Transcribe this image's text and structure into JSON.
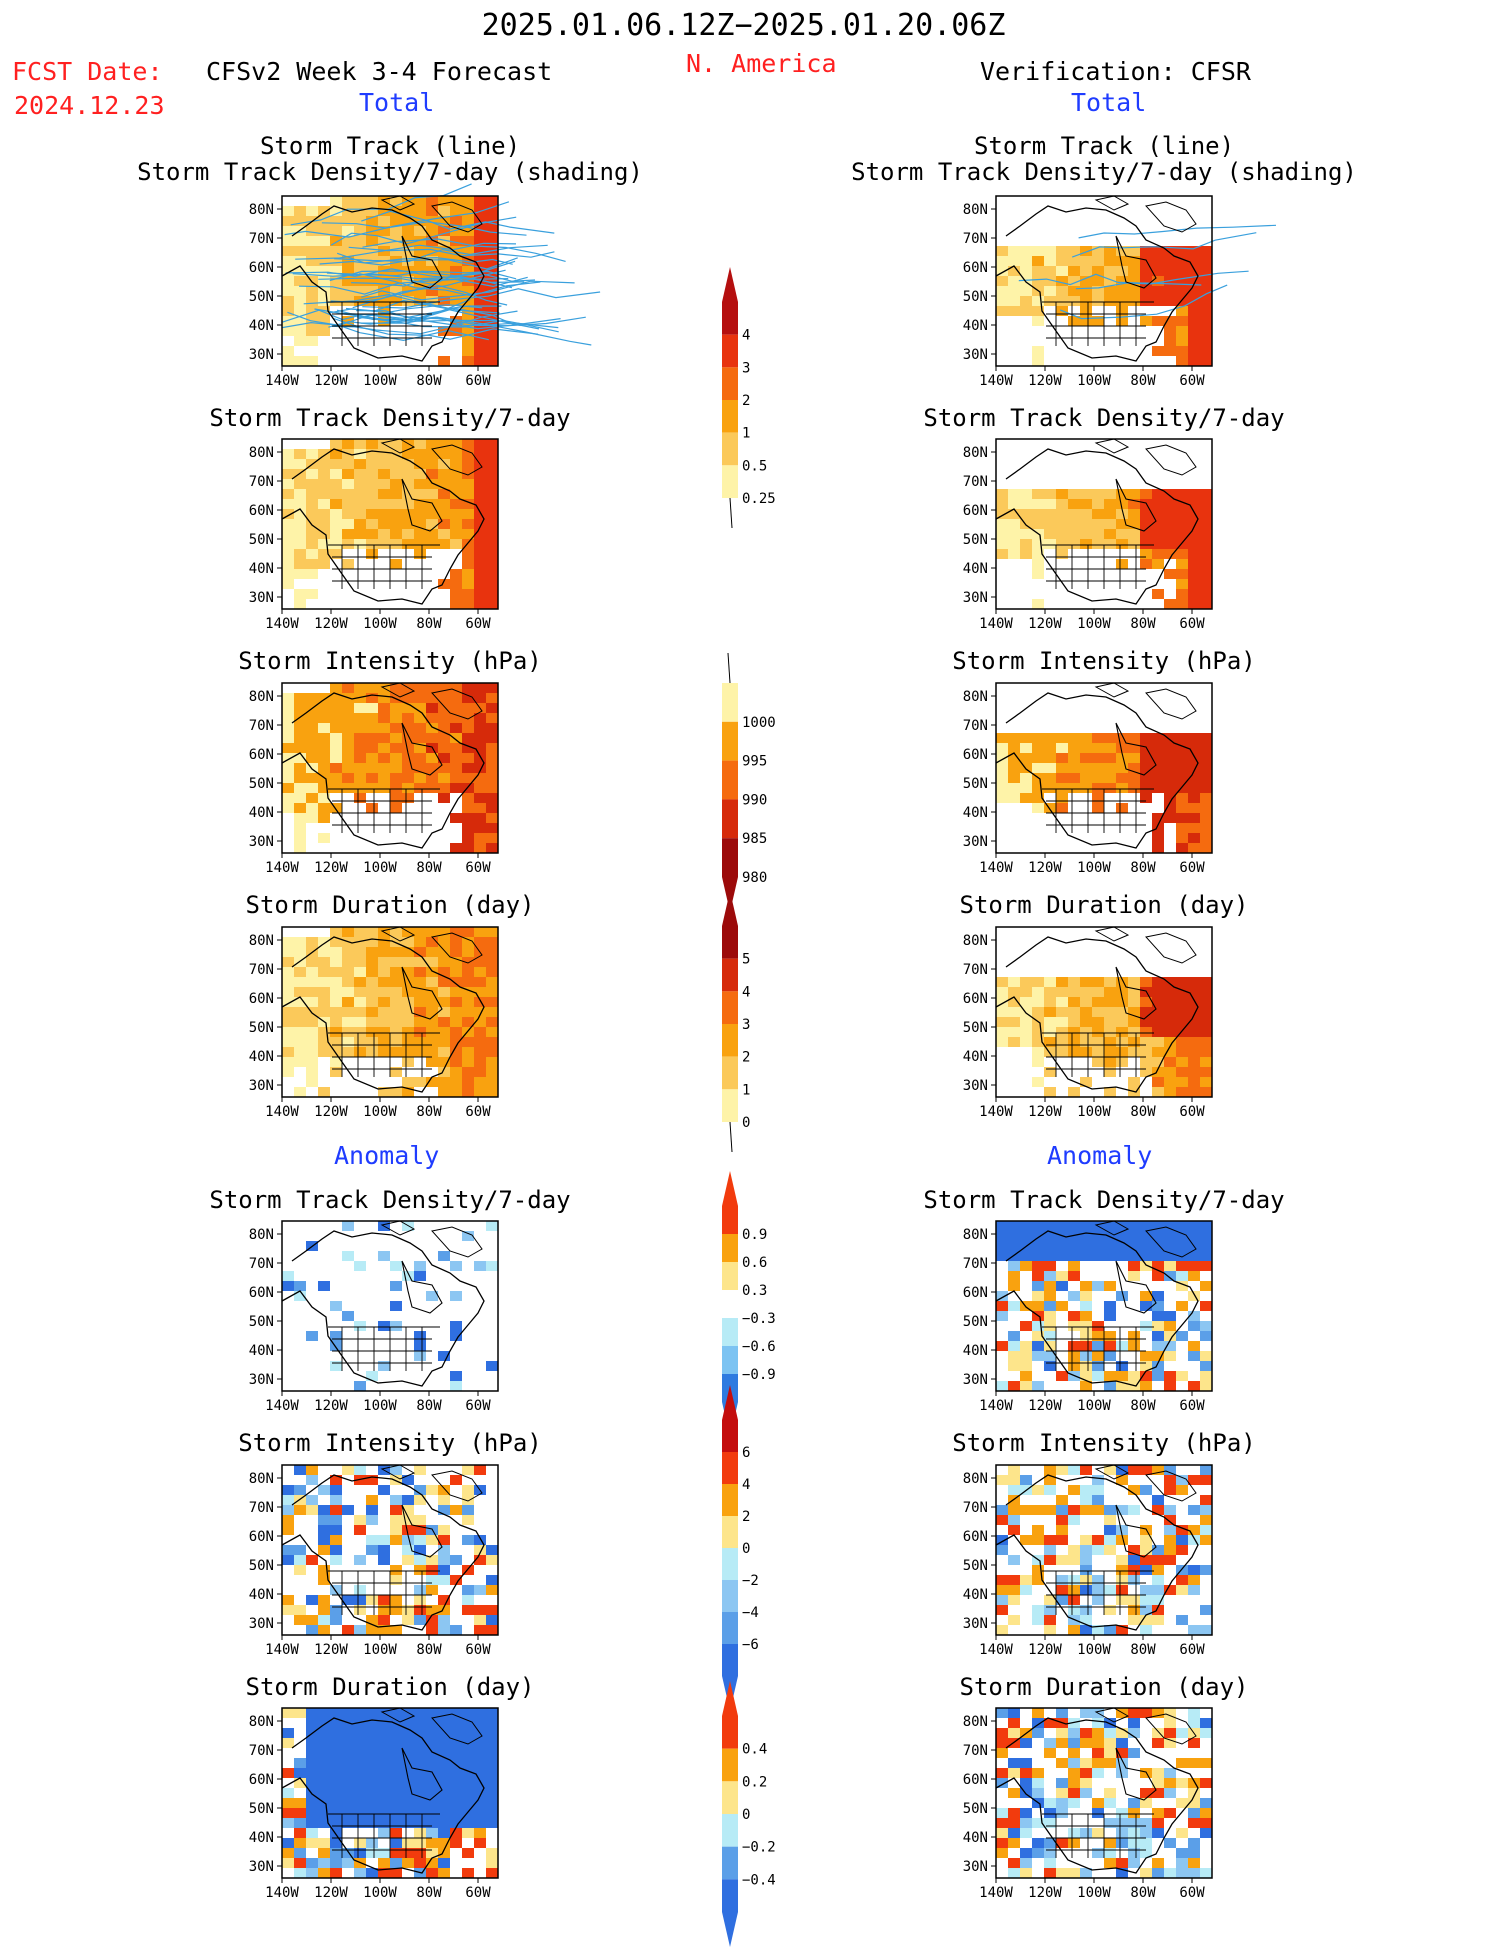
{
  "header": {
    "period": "2025.01.06.12Z−2025.01.20.06Z",
    "region": "N. America",
    "fcst_label": "FCST Date:",
    "fcst_date": "2024.12.23",
    "left_title": "CFSv2 Week 3-4 Forecast",
    "right_title": "Verification: CFSR",
    "total_label": "Total",
    "anomaly_label": "Anomaly"
  },
  "panel_titles": {
    "track_line": "Storm Track (line)",
    "track_shading": "Storm Track Density/7-day (shading)",
    "density": "Storm Track Density/7-day",
    "intensity": "Storm Intensity (hPa)",
    "duration": "Storm Duration (day)"
  },
  "axes": {
    "lat_labels": [
      "80N",
      "70N",
      "60N",
      "50N",
      "40N",
      "30N"
    ],
    "lon_labels": [
      "140W",
      "120W",
      "100W",
      "80W",
      "60W"
    ]
  },
  "colorbars": {
    "density": {
      "labels": [
        "4",
        "3",
        "2",
        "1",
        "0.5",
        "0.25"
      ],
      "colors": [
        "#b50f0f",
        "#e8330e",
        "#f56b0f",
        "#f9a20f",
        "#fbc95a",
        "#fef3a8"
      ]
    },
    "intensity": {
      "labels": [
        "1000",
        "995",
        "990",
        "985",
        "980"
      ],
      "colors": [
        "#fef3a8",
        "#f9a20f",
        "#f56b0f",
        "#d62a0a",
        "#9c0a0a"
      ]
    },
    "duration": {
      "labels": [
        "5",
        "4",
        "3",
        "2",
        "1",
        "0"
      ],
      "colors": [
        "#9c0a0a",
        "#d62a0a",
        "#f56b0f",
        "#f9a20f",
        "#fbc95a",
        "#fef3a8"
      ]
    },
    "anom_density": {
      "labels": [
        "0.9",
        "0.6",
        "0.3",
        "−0.3",
        "−0.6",
        "−0.9"
      ],
      "colors": [
        "#f23b0d",
        "#f9a20f",
        "#fde58b",
        "#ffffff",
        "#b7ebf6",
        "#7cc3f2",
        "#2f7be0"
      ]
    },
    "anom_intensity": {
      "labels": [
        "6",
        "4",
        "2",
        "0",
        "−2",
        "−4",
        "−6"
      ],
      "colors": [
        "#c40d0d",
        "#f23b0d",
        "#f9a20f",
        "#fde58b",
        "#b7ebf6",
        "#8cc6f2",
        "#5b9fe8",
        "#2f6fe0"
      ]
    },
    "anom_duration": {
      "labels": [
        "0.4",
        "0.2",
        "0",
        "−0.2",
        "−0.4"
      ],
      "colors": [
        "#f23b0d",
        "#f9a20f",
        "#fde58b",
        "#b7ebf6",
        "#5b9fe8",
        "#2f6fe0"
      ]
    }
  },
  "colors": {
    "title_red": "#ff2020",
    "title_blue": "#1f3cff",
    "track_line": "#3aa0dd"
  }
}
